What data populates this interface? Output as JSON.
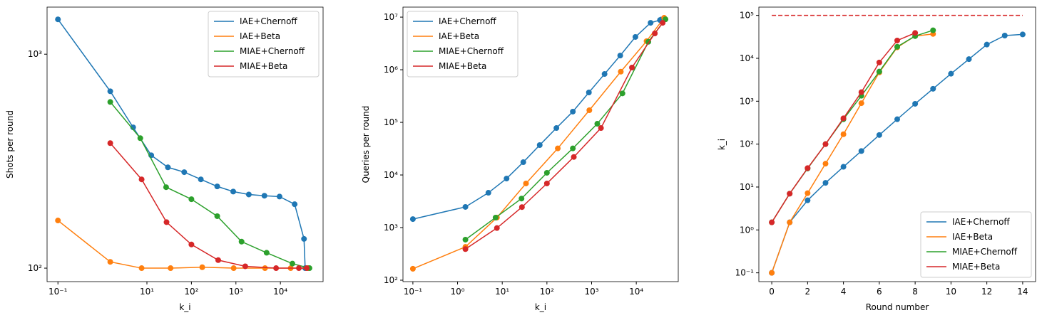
{
  "chart_data": [
    {
      "type": "line",
      "xscale": "log",
      "yscale": "log",
      "xlabel": "k_i",
      "ylabel": "Shots per round",
      "xlim": [
        0.057,
        91000
      ],
      "ylim": [
        86.5,
        1660
      ],
      "xticks": [
        {
          "value": 0.1,
          "label": "10⁻¹"
        },
        {
          "value": 10,
          "label": "10¹"
        },
        {
          "value": 100,
          "label": "10²"
        },
        {
          "value": 1000,
          "label": "10³"
        },
        {
          "value": 10000,
          "label": "10⁴"
        }
      ],
      "yticks": [
        {
          "value": 100,
          "label": "10²"
        },
        {
          "value": 1000,
          "label": "10³"
        }
      ],
      "legend": "upper right",
      "series": [
        {
          "name": "IAE+Chernoff",
          "color": "#1f77b4",
          "x": [
            0.1,
            1.5,
            4.9,
            12.5,
            29.6,
            69,
            163,
            380,
            870,
            1950,
            4370,
            9560,
            20900,
            33900,
            36000
          ],
          "values": [
            1455,
            671,
            455,
            337,
            296,
            281,
            260,
            241,
            228,
            221,
            218,
            216,
            199,
            137,
            100
          ]
        },
        {
          "name": "IAE+Beta",
          "color": "#ff7f0e",
          "x": [
            0.1,
            1.5,
            7.6,
            34,
            175,
            890,
            4500,
            17000,
            42000
          ],
          "values": [
            167,
            107,
            100,
            100,
            101,
            100,
            100,
            100,
            100
          ]
        },
        {
          "name": "MIAE+Chernoff",
          "color": "#2ca02c",
          "x": [
            1.5,
            7.1,
            27,
            100,
            380,
            1340,
            4900,
            18600,
            45000
          ],
          "values": [
            598,
            405,
            239,
            210,
            175,
            133,
            118,
            105,
            100
          ]
        },
        {
          "name": "MIAE+Beta",
          "color": "#d62728",
          "x": [
            1.5,
            7.6,
            27.6,
            100,
            400,
            1620,
            8000,
            26000,
            39000
          ],
          "values": [
            384,
            260,
            164,
            129,
            109,
            102,
            100,
            100,
            100
          ]
        }
      ]
    },
    {
      "type": "line",
      "xscale": "log",
      "yscale": "log",
      "xlabel": "k_i",
      "ylabel": "Queries per round",
      "xlim": [
        0.06,
        87000
      ],
      "ylim": [
        94,
        15500000
      ],
      "xticks": [
        {
          "value": 0.1,
          "label": "10⁻¹"
        },
        {
          "value": 1,
          "label": "10⁰"
        },
        {
          "value": 10,
          "label": "10¹"
        },
        {
          "value": 100,
          "label": "10²"
        },
        {
          "value": 1000,
          "label": "10³"
        },
        {
          "value": 10000,
          "label": "10⁴"
        }
      ],
      "yticks": [
        {
          "value": 100,
          "label": "10²"
        },
        {
          "value": 1000,
          "label": "10³"
        },
        {
          "value": 10000,
          "label": "10⁴"
        },
        {
          "value": 100000,
          "label": "10⁵"
        },
        {
          "value": 1000000,
          "label": "10⁶"
        },
        {
          "value": 10000000,
          "label": "10⁷"
        }
      ],
      "legend": "upper left",
      "series": [
        {
          "name": "IAE+Chernoff",
          "color": "#1f77b4",
          "x": [
            0.1,
            1.5,
            4.9,
            12.5,
            29.6,
            69,
            163,
            380,
            870,
            1950,
            4370,
            9560,
            20900,
            33900,
            36000
          ],
          "values": [
            1450,
            2470,
            4590,
            8550,
            17500,
            37000,
            78000,
            160000,
            370000,
            830000,
            1860000,
            4200000,
            7800000,
            8800000,
            9000000
          ]
        },
        {
          "name": "IAE+Beta",
          "color": "#ff7f0e",
          "x": [
            0.1,
            1.5,
            7.6,
            34,
            175,
            890,
            4500,
            17000,
            42000
          ],
          "values": [
            165,
            430,
            1550,
            6900,
            32000,
            170000,
            920000,
            3500000,
            9700000
          ]
        },
        {
          "name": "MIAE+Chernoff",
          "color": "#2ca02c",
          "x": [
            1.5,
            7.1,
            27,
            100,
            380,
            1340,
            4900,
            18600,
            45000
          ],
          "values": [
            590,
            1550,
            3560,
            11000,
            32000,
            94000,
            355000,
            3400000,
            9100000
          ]
        },
        {
          "name": "MIAE+Beta",
          "color": "#d62728",
          "x": [
            1.5,
            7.6,
            27.6,
            100,
            400,
            1620,
            8000,
            26000,
            39000
          ],
          "values": [
            390,
            980,
            2450,
            6900,
            22000,
            78000,
            1100000,
            4900000,
            7800000
          ]
        }
      ]
    },
    {
      "type": "line",
      "xscale": "linear",
      "yscale": "log",
      "xlabel": "Round number",
      "ylabel": "k_i",
      "xlim": [
        -0.72,
        14.72
      ],
      "ylim": [
        0.0624,
        156000
      ],
      "xticks": [
        0,
        2,
        4,
        6,
        8,
        10,
        12,
        14
      ],
      "yticks": [
        {
          "value": 0.1,
          "label": "10⁻¹"
        },
        {
          "value": 1,
          "label": "10⁰"
        },
        {
          "value": 10,
          "label": "10¹"
        },
        {
          "value": 100,
          "label": "10²"
        },
        {
          "value": 1000,
          "label": "10³"
        },
        {
          "value": 10000,
          "label": "10⁴"
        },
        {
          "value": 100000,
          "label": "10⁵"
        }
      ],
      "legend": "lower right",
      "hline": {
        "value": 100000,
        "xmin": 0,
        "xmax": 14,
        "color": "#d62728"
      },
      "series": [
        {
          "name": "IAE+Chernoff",
          "color": "#1f77b4",
          "x": [
            0,
            1,
            2,
            3,
            4,
            5,
            6,
            7,
            8,
            9,
            10,
            11,
            12,
            13,
            14
          ],
          "values": [
            0.1,
            1.5,
            4.9,
            12.5,
            29.6,
            69,
            163,
            380,
            870,
            1950,
            4370,
            9560,
            20900,
            33900,
            36000
          ]
        },
        {
          "name": "IAE+Beta",
          "color": "#ff7f0e",
          "x": [
            0,
            1,
            2,
            3,
            4,
            5,
            6,
            7,
            8,
            9
          ],
          "values": [
            0.1,
            1.5,
            7.2,
            35,
            170,
            900,
            4700,
            18000,
            33000,
            37000
          ]
        },
        {
          "name": "MIAE+Chernoff",
          "color": "#2ca02c",
          "x": [
            0,
            1,
            2,
            3,
            4,
            5,
            6,
            7,
            8,
            9
          ],
          "values": [
            1.5,
            7,
            27,
            100,
            380,
            1340,
            4900,
            18600,
            33000,
            45000
          ]
        },
        {
          "name": "MIAE+Beta",
          "color": "#d62728",
          "x": [
            0,
            1,
            2,
            3,
            4,
            5,
            6,
            7,
            8
          ],
          "values": [
            1.5,
            7,
            27.6,
            100,
            400,
            1620,
            8000,
            26000,
            39000
          ]
        }
      ]
    }
  ]
}
